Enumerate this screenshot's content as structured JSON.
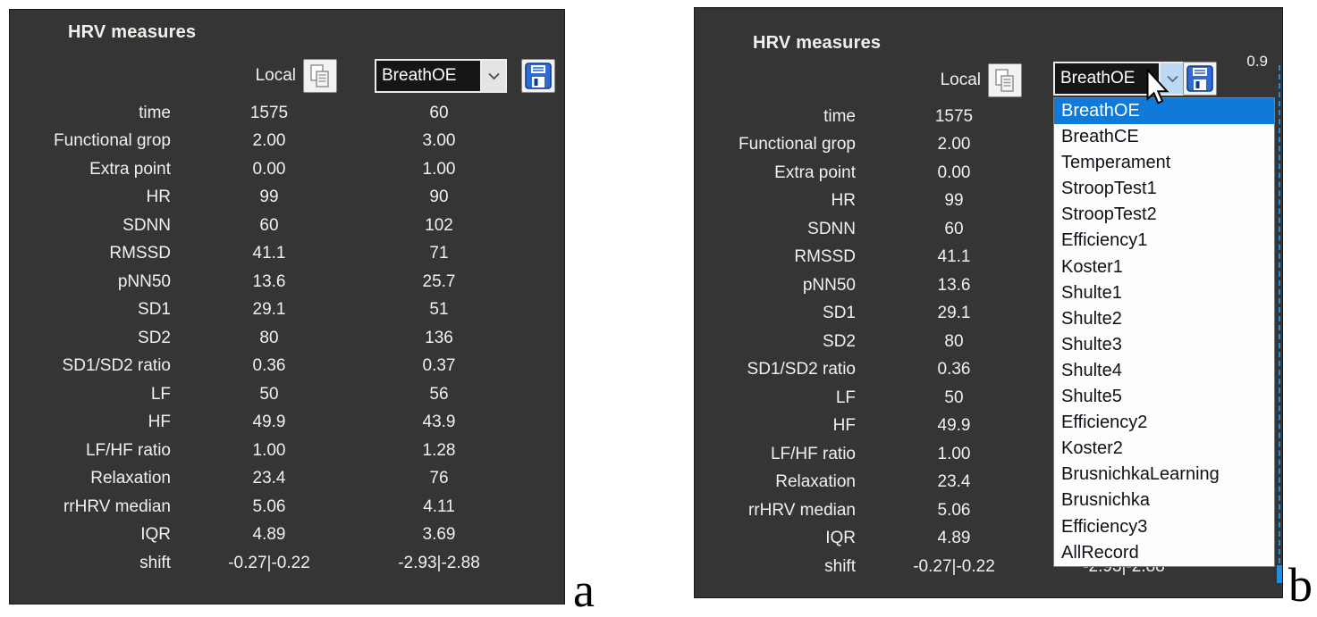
{
  "colors": {
    "panel_bg": "#353535",
    "text_light": "#f1f1ec",
    "selection_blue": "#0f7ad8",
    "accent_blue": "#1e8fe0"
  },
  "shared": {
    "title": "HRV measures",
    "local_column_label": "Local",
    "remote_selected_value": "BreathOE",
    "icons": {
      "copy_button": "copy-pages-icon",
      "save_button": "floppy-disk-icon",
      "select_arrow": "chevron-down-icon",
      "pointer": "mouse-cursor-icon"
    }
  },
  "measures": {
    "rows": [
      {
        "label": "time",
        "local": "1575",
        "remote": "60"
      },
      {
        "label": "Functional grop",
        "local": "2.00",
        "remote": "3.00"
      },
      {
        "label": "Extra point",
        "local": "0.00",
        "remote": "1.00"
      },
      {
        "label": "HR",
        "local": "99",
        "remote": "90"
      },
      {
        "label": "SDNN",
        "local": "60",
        "remote": "102"
      },
      {
        "label": "RMSSD",
        "local": "41.1",
        "remote": "71"
      },
      {
        "label": "pNN50",
        "local": "13.6",
        "remote": "25.7"
      },
      {
        "label": "SD1",
        "local": "29.1",
        "remote": "51"
      },
      {
        "label": "SD2",
        "local": "80",
        "remote": "136"
      },
      {
        "label": "SD1/SD2 ratio",
        "local": "0.36",
        "remote": "0.37"
      },
      {
        "label": "LF",
        "local": "50",
        "remote": "56"
      },
      {
        "label": "HF",
        "local": "49.9",
        "remote": "43.9"
      },
      {
        "label": "LF/HF ratio",
        "local": "1.00",
        "remote": "1.28"
      },
      {
        "label": "Relaxation",
        "local": "23.4",
        "remote": "76"
      },
      {
        "label": "rrHRV median",
        "local": "5.06",
        "remote": "4.11"
      },
      {
        "label": "IQR",
        "local": "4.89",
        "remote": "3.69"
      },
      {
        "label": "shift",
        "local": "-0.27|-0.22",
        "remote": "-2.93|-2.88"
      }
    ]
  },
  "panel_a": {
    "figure_label": "a"
  },
  "panel_b": {
    "figure_label": "b",
    "corner_value": "0.9",
    "dropdown": {
      "selected": "BreathOE",
      "options": [
        "BreathOE",
        "BreathCE",
        "Temperament",
        "StroopTest1",
        "StroopTest2",
        "Efficiency1",
        "Koster1",
        "Shulte1",
        "Shulte2",
        "Shulte3",
        "Shulte4",
        "Shulte5",
        "Efficiency2",
        "Koster2",
        "BrusnichkaLearning",
        "Brusnichka",
        "Efficiency3",
        "AllRecord"
      ]
    }
  }
}
